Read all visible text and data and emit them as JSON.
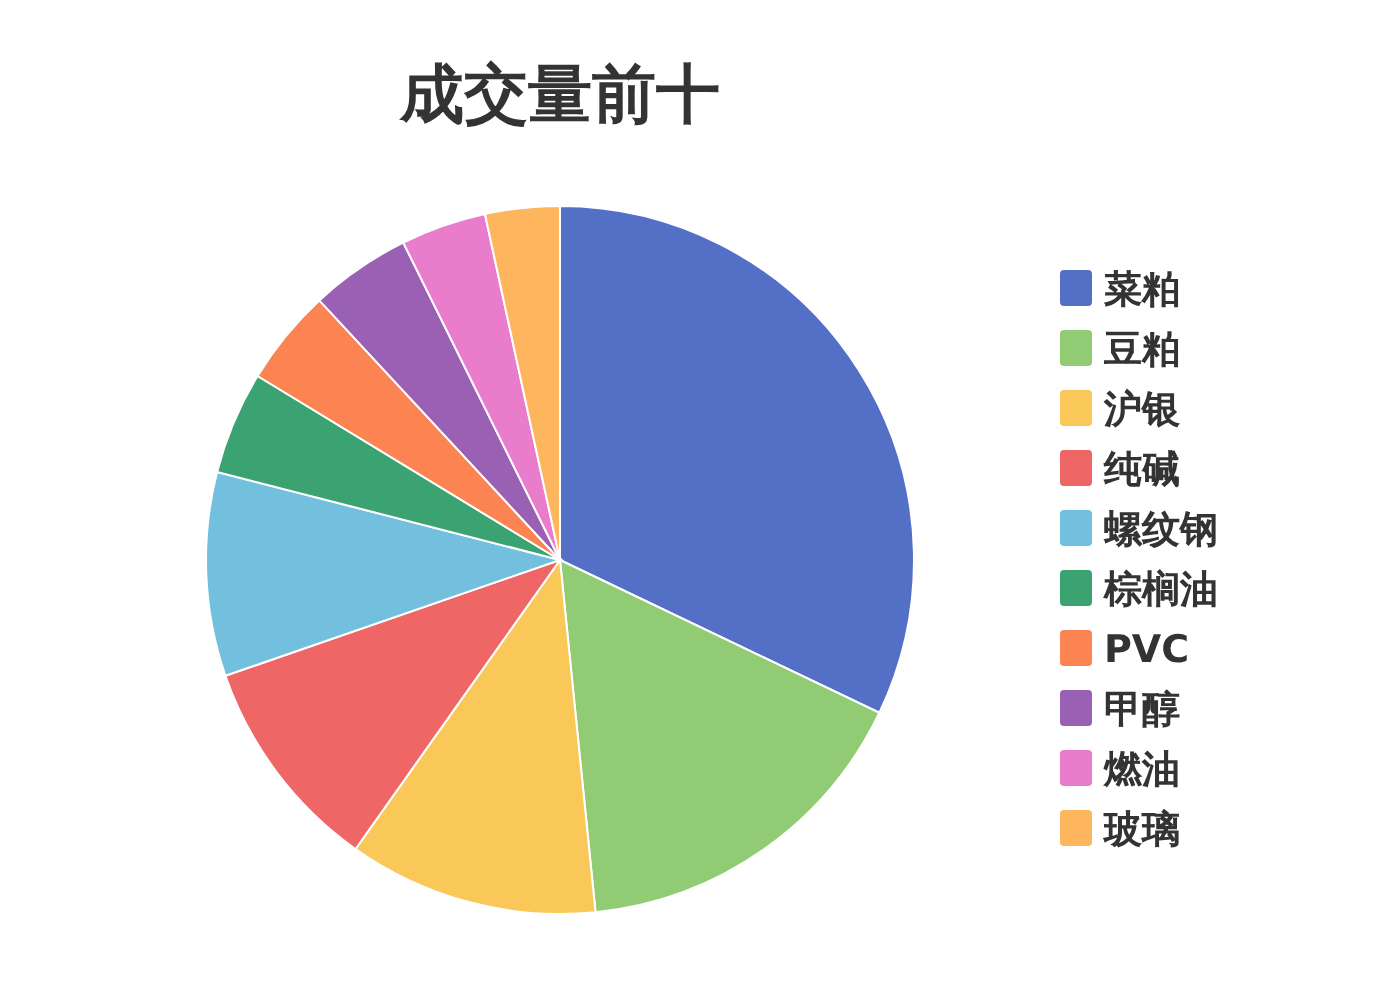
{
  "chart_data": {
    "type": "pie",
    "title": "成交量前十",
    "categories": [
      "菜粕",
      "豆粕",
      "沪银",
      "纯碱",
      "螺纹钢",
      "棕榈油",
      "PVC",
      "甲醇",
      "燃油",
      "玻璃"
    ],
    "values": [
      32.1,
      16.3,
      11.4,
      9.9,
      9.3,
      4.7,
      4.4,
      4.6,
      3.9,
      3.4
    ],
    "colors": [
      "#5470c6",
      "#91cc75",
      "#fac858",
      "#ee6666",
      "#73c0de",
      "#3ba272",
      "#fc8452",
      "#9a60b4",
      "#ea7ccc",
      "#fdb55e"
    ],
    "legend": "right"
  }
}
